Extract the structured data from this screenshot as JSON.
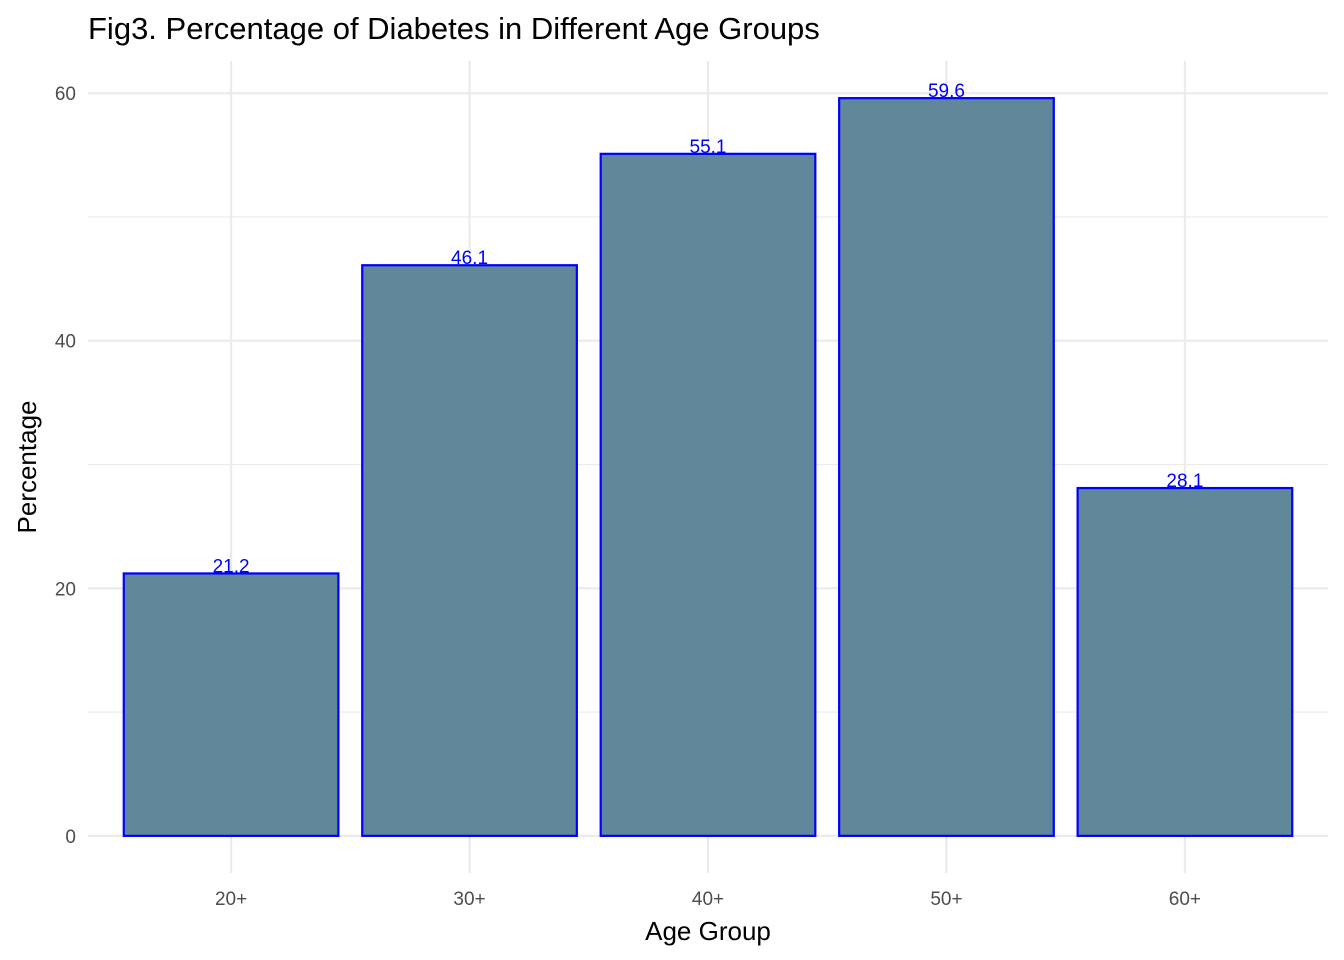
{
  "chart_data": {
    "type": "bar",
    "title": "Fig3. Percentage of Diabetes in Different Age Groups",
    "xlabel": "Age Group",
    "ylabel": "Percentage",
    "categories": [
      "20+",
      "30+",
      "40+",
      "50+",
      "60+"
    ],
    "values": [
      21.2,
      46.1,
      55.1,
      59.6,
      28.1
    ],
    "data_labels": [
      "21.2",
      "46.1",
      "55.1",
      "59.6",
      "28.1"
    ],
    "ylim": [
      -3,
      62.6
    ],
    "yticks": [
      0,
      20,
      40,
      60
    ],
    "yticks_minor": [
      10,
      30,
      50
    ],
    "grid": true,
    "legend": "none",
    "colors": {
      "bar_fill": "#5e8598",
      "bar_outline": "#0000ff",
      "data_label": "#0000ff",
      "grid": "#ebebeb",
      "tick_text": "#4d4d4d"
    }
  }
}
